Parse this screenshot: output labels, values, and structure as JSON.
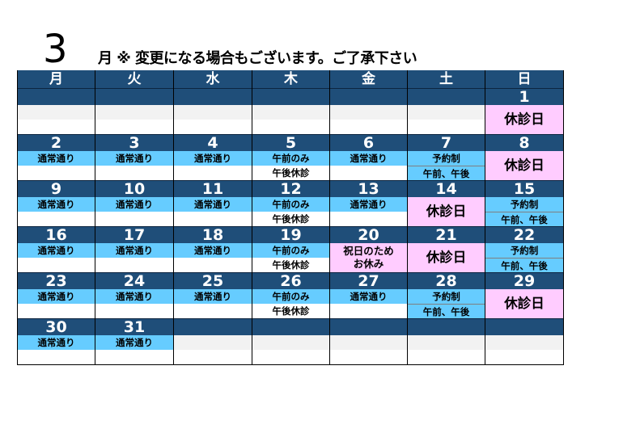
{
  "header": {
    "month": "3",
    "note": "月 ※ 変更になる場合もございます。ご了承下さい"
  },
  "colors": {
    "navy": "#1F4E79",
    "blue": "#66CCFF",
    "pink": "#FFCCFF",
    "gray": "#F2F2F2",
    "white": "#FFFFFF"
  },
  "weekdays": [
    "月",
    "火",
    "水",
    "木",
    "金",
    "土",
    "日"
  ],
  "weeks": [
    [
      {
        "day": "",
        "type": "split",
        "lines": [
          "",
          ""
        ],
        "bg": [
          "gray",
          "white"
        ]
      },
      {
        "day": "",
        "type": "split",
        "lines": [
          "",
          ""
        ],
        "bg": [
          "gray",
          "white"
        ]
      },
      {
        "day": "",
        "type": "split",
        "lines": [
          "",
          ""
        ],
        "bg": [
          "gray",
          "white"
        ]
      },
      {
        "day": "",
        "type": "split",
        "lines": [
          "",
          ""
        ],
        "bg": [
          "gray",
          "white"
        ]
      },
      {
        "day": "",
        "type": "split",
        "lines": [
          "",
          ""
        ],
        "bg": [
          "gray",
          "white"
        ]
      },
      {
        "day": "",
        "type": "split",
        "lines": [
          "",
          ""
        ],
        "bg": [
          "gray",
          "white"
        ]
      },
      {
        "day": "1",
        "type": "merged",
        "lines": [
          "休診日"
        ],
        "bg": "pink"
      }
    ],
    [
      {
        "day": "2",
        "type": "split",
        "lines": [
          "通常通り",
          ""
        ],
        "bg": [
          "blue",
          "white"
        ]
      },
      {
        "day": "3",
        "type": "split",
        "lines": [
          "通常通り",
          ""
        ],
        "bg": [
          "blue",
          "white"
        ]
      },
      {
        "day": "4",
        "type": "split",
        "lines": [
          "通常通り",
          ""
        ],
        "bg": [
          "blue",
          "white"
        ]
      },
      {
        "day": "5",
        "type": "split",
        "lines": [
          "午前のみ",
          "午後休診"
        ],
        "bg": [
          "blue",
          "white"
        ]
      },
      {
        "day": "6",
        "type": "split",
        "lines": [
          "通常通り",
          ""
        ],
        "bg": [
          "blue",
          "white"
        ]
      },
      {
        "day": "7",
        "type": "split",
        "lines": [
          "予約制",
          "午前、午後"
        ],
        "bg": [
          "blue",
          "blue"
        ]
      },
      {
        "day": "8",
        "type": "merged",
        "lines": [
          "休診日"
        ],
        "bg": "pink"
      }
    ],
    [
      {
        "day": "9",
        "type": "split",
        "lines": [
          "通常通り",
          ""
        ],
        "bg": [
          "blue",
          "white"
        ]
      },
      {
        "day": "10",
        "type": "split",
        "lines": [
          "通常通り",
          ""
        ],
        "bg": [
          "blue",
          "white"
        ]
      },
      {
        "day": "11",
        "type": "split",
        "lines": [
          "通常通り",
          ""
        ],
        "bg": [
          "blue",
          "white"
        ]
      },
      {
        "day": "12",
        "type": "split",
        "lines": [
          "午前のみ",
          "午後休診"
        ],
        "bg": [
          "blue",
          "white"
        ]
      },
      {
        "day": "13",
        "type": "split",
        "lines": [
          "通常通り",
          ""
        ],
        "bg": [
          "blue",
          "white"
        ]
      },
      {
        "day": "14",
        "type": "merged",
        "lines": [
          "休診日"
        ],
        "bg": "pink"
      },
      {
        "day": "15",
        "type": "split",
        "lines": [
          "予約制",
          "午前、午後"
        ],
        "bg": [
          "blue",
          "blue"
        ]
      }
    ],
    [
      {
        "day": "16",
        "type": "split",
        "lines": [
          "通常通り",
          ""
        ],
        "bg": [
          "blue",
          "white"
        ]
      },
      {
        "day": "17",
        "type": "split",
        "lines": [
          "通常通り",
          ""
        ],
        "bg": [
          "blue",
          "white"
        ]
      },
      {
        "day": "18",
        "type": "split",
        "lines": [
          "通常通り",
          ""
        ],
        "bg": [
          "blue",
          "white"
        ]
      },
      {
        "day": "19",
        "type": "split",
        "lines": [
          "午前のみ",
          "午後休診"
        ],
        "bg": [
          "blue",
          "white"
        ]
      },
      {
        "day": "20",
        "type": "merged",
        "lines": [
          "祝日のため",
          "お休み"
        ],
        "bg": "pink"
      },
      {
        "day": "21",
        "type": "merged",
        "lines": [
          "休診日"
        ],
        "bg": "pink"
      },
      {
        "day": "22",
        "type": "split",
        "lines": [
          "予約制",
          "午前、午後"
        ],
        "bg": [
          "blue",
          "blue"
        ]
      }
    ],
    [
      {
        "day": "23",
        "type": "split",
        "lines": [
          "通常通り",
          ""
        ],
        "bg": [
          "blue",
          "white"
        ]
      },
      {
        "day": "24",
        "type": "split",
        "lines": [
          "通常通り",
          ""
        ],
        "bg": [
          "blue",
          "white"
        ]
      },
      {
        "day": "25",
        "type": "split",
        "lines": [
          "通常通り",
          ""
        ],
        "bg": [
          "blue",
          "white"
        ]
      },
      {
        "day": "26",
        "type": "split",
        "lines": [
          "午前のみ",
          "午後休診"
        ],
        "bg": [
          "blue",
          "white"
        ]
      },
      {
        "day": "27",
        "type": "split",
        "lines": [
          "通常通り",
          ""
        ],
        "bg": [
          "blue",
          "white"
        ]
      },
      {
        "day": "28",
        "type": "split",
        "lines": [
          "予約制",
          "午前、午後"
        ],
        "bg": [
          "blue",
          "blue"
        ]
      },
      {
        "day": "29",
        "type": "merged",
        "lines": [
          "休診日"
        ],
        "bg": "pink"
      }
    ],
    [
      {
        "day": "30",
        "type": "split",
        "lines": [
          "通常通り",
          ""
        ],
        "bg": [
          "blue",
          "white"
        ]
      },
      {
        "day": "31",
        "type": "split",
        "lines": [
          "通常通り",
          ""
        ],
        "bg": [
          "blue",
          "white"
        ]
      },
      {
        "day": "",
        "type": "split",
        "lines": [
          "",
          ""
        ],
        "bg": [
          "gray",
          "white"
        ]
      },
      {
        "day": "",
        "type": "split",
        "lines": [
          "",
          ""
        ],
        "bg": [
          "gray",
          "white"
        ]
      },
      {
        "day": "",
        "type": "split",
        "lines": [
          "",
          ""
        ],
        "bg": [
          "gray",
          "white"
        ]
      },
      {
        "day": "",
        "type": "split",
        "lines": [
          "",
          ""
        ],
        "bg": [
          "gray",
          "white"
        ]
      },
      {
        "day": "",
        "type": "split",
        "lines": [
          "",
          ""
        ],
        "bg": [
          "gray",
          "white"
        ]
      }
    ]
  ]
}
